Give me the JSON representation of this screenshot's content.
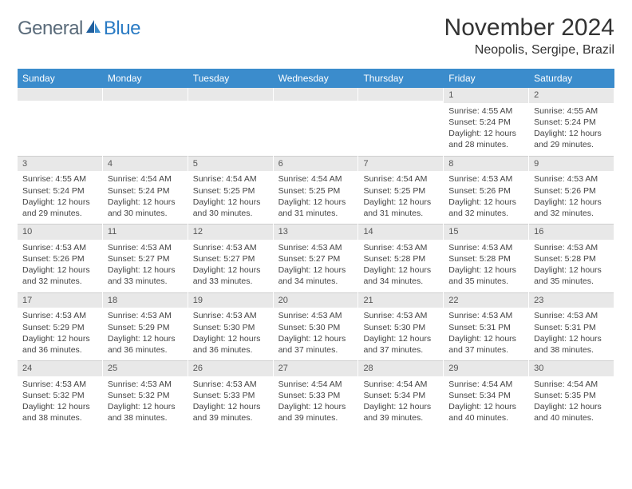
{
  "logo": {
    "text1": "General",
    "text2": "Blue"
  },
  "title": "November 2024",
  "location": "Neopolis, Sergipe, Brazil",
  "weekdays": [
    "Sunday",
    "Monday",
    "Tuesday",
    "Wednesday",
    "Thursday",
    "Friday",
    "Saturday"
  ],
  "colors": {
    "header_bg": "#3b8ccc",
    "header_fg": "#ffffff",
    "daynum_bg": "#e8e8e8",
    "border": "#cfcfcf",
    "text": "#444444",
    "logo_gray": "#5a6b7a",
    "logo_blue": "#2a7bc4"
  },
  "weeks": [
    [
      {
        "n": "",
        "sr": "",
        "ss": "",
        "dl": "",
        "empty": true
      },
      {
        "n": "",
        "sr": "",
        "ss": "",
        "dl": "",
        "empty": true
      },
      {
        "n": "",
        "sr": "",
        "ss": "",
        "dl": "",
        "empty": true
      },
      {
        "n": "",
        "sr": "",
        "ss": "",
        "dl": "",
        "empty": true
      },
      {
        "n": "",
        "sr": "",
        "ss": "",
        "dl": "",
        "empty": true
      },
      {
        "n": "1",
        "sr": "Sunrise: 4:55 AM",
        "ss": "Sunset: 5:24 PM",
        "dl": "Daylight: 12 hours and 28 minutes."
      },
      {
        "n": "2",
        "sr": "Sunrise: 4:55 AM",
        "ss": "Sunset: 5:24 PM",
        "dl": "Daylight: 12 hours and 29 minutes."
      }
    ],
    [
      {
        "n": "3",
        "sr": "Sunrise: 4:55 AM",
        "ss": "Sunset: 5:24 PM",
        "dl": "Daylight: 12 hours and 29 minutes."
      },
      {
        "n": "4",
        "sr": "Sunrise: 4:54 AM",
        "ss": "Sunset: 5:24 PM",
        "dl": "Daylight: 12 hours and 30 minutes."
      },
      {
        "n": "5",
        "sr": "Sunrise: 4:54 AM",
        "ss": "Sunset: 5:25 PM",
        "dl": "Daylight: 12 hours and 30 minutes."
      },
      {
        "n": "6",
        "sr": "Sunrise: 4:54 AM",
        "ss": "Sunset: 5:25 PM",
        "dl": "Daylight: 12 hours and 31 minutes."
      },
      {
        "n": "7",
        "sr": "Sunrise: 4:54 AM",
        "ss": "Sunset: 5:25 PM",
        "dl": "Daylight: 12 hours and 31 minutes."
      },
      {
        "n": "8",
        "sr": "Sunrise: 4:53 AM",
        "ss": "Sunset: 5:26 PM",
        "dl": "Daylight: 12 hours and 32 minutes."
      },
      {
        "n": "9",
        "sr": "Sunrise: 4:53 AM",
        "ss": "Sunset: 5:26 PM",
        "dl": "Daylight: 12 hours and 32 minutes."
      }
    ],
    [
      {
        "n": "10",
        "sr": "Sunrise: 4:53 AM",
        "ss": "Sunset: 5:26 PM",
        "dl": "Daylight: 12 hours and 32 minutes."
      },
      {
        "n": "11",
        "sr": "Sunrise: 4:53 AM",
        "ss": "Sunset: 5:27 PM",
        "dl": "Daylight: 12 hours and 33 minutes."
      },
      {
        "n": "12",
        "sr": "Sunrise: 4:53 AM",
        "ss": "Sunset: 5:27 PM",
        "dl": "Daylight: 12 hours and 33 minutes."
      },
      {
        "n": "13",
        "sr": "Sunrise: 4:53 AM",
        "ss": "Sunset: 5:27 PM",
        "dl": "Daylight: 12 hours and 34 minutes."
      },
      {
        "n": "14",
        "sr": "Sunrise: 4:53 AM",
        "ss": "Sunset: 5:28 PM",
        "dl": "Daylight: 12 hours and 34 minutes."
      },
      {
        "n": "15",
        "sr": "Sunrise: 4:53 AM",
        "ss": "Sunset: 5:28 PM",
        "dl": "Daylight: 12 hours and 35 minutes."
      },
      {
        "n": "16",
        "sr": "Sunrise: 4:53 AM",
        "ss": "Sunset: 5:28 PM",
        "dl": "Daylight: 12 hours and 35 minutes."
      }
    ],
    [
      {
        "n": "17",
        "sr": "Sunrise: 4:53 AM",
        "ss": "Sunset: 5:29 PM",
        "dl": "Daylight: 12 hours and 36 minutes."
      },
      {
        "n": "18",
        "sr": "Sunrise: 4:53 AM",
        "ss": "Sunset: 5:29 PM",
        "dl": "Daylight: 12 hours and 36 minutes."
      },
      {
        "n": "19",
        "sr": "Sunrise: 4:53 AM",
        "ss": "Sunset: 5:30 PM",
        "dl": "Daylight: 12 hours and 36 minutes."
      },
      {
        "n": "20",
        "sr": "Sunrise: 4:53 AM",
        "ss": "Sunset: 5:30 PM",
        "dl": "Daylight: 12 hours and 37 minutes."
      },
      {
        "n": "21",
        "sr": "Sunrise: 4:53 AM",
        "ss": "Sunset: 5:30 PM",
        "dl": "Daylight: 12 hours and 37 minutes."
      },
      {
        "n": "22",
        "sr": "Sunrise: 4:53 AM",
        "ss": "Sunset: 5:31 PM",
        "dl": "Daylight: 12 hours and 37 minutes."
      },
      {
        "n": "23",
        "sr": "Sunrise: 4:53 AM",
        "ss": "Sunset: 5:31 PM",
        "dl": "Daylight: 12 hours and 38 minutes."
      }
    ],
    [
      {
        "n": "24",
        "sr": "Sunrise: 4:53 AM",
        "ss": "Sunset: 5:32 PM",
        "dl": "Daylight: 12 hours and 38 minutes."
      },
      {
        "n": "25",
        "sr": "Sunrise: 4:53 AM",
        "ss": "Sunset: 5:32 PM",
        "dl": "Daylight: 12 hours and 38 minutes."
      },
      {
        "n": "26",
        "sr": "Sunrise: 4:53 AM",
        "ss": "Sunset: 5:33 PM",
        "dl": "Daylight: 12 hours and 39 minutes."
      },
      {
        "n": "27",
        "sr": "Sunrise: 4:54 AM",
        "ss": "Sunset: 5:33 PM",
        "dl": "Daylight: 12 hours and 39 minutes."
      },
      {
        "n": "28",
        "sr": "Sunrise: 4:54 AM",
        "ss": "Sunset: 5:34 PM",
        "dl": "Daylight: 12 hours and 39 minutes."
      },
      {
        "n": "29",
        "sr": "Sunrise: 4:54 AM",
        "ss": "Sunset: 5:34 PM",
        "dl": "Daylight: 12 hours and 40 minutes."
      },
      {
        "n": "30",
        "sr": "Sunrise: 4:54 AM",
        "ss": "Sunset: 5:35 PM",
        "dl": "Daylight: 12 hours and 40 minutes."
      }
    ]
  ]
}
